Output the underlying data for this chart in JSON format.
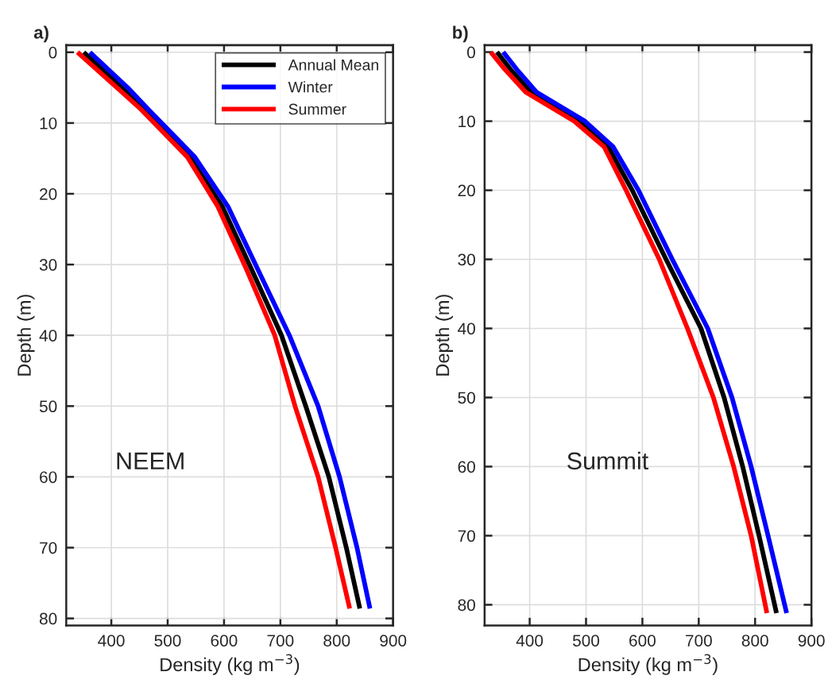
{
  "chart_data": [
    {
      "type": "line",
      "title": "a)",
      "xlabel": "Density (kg m$^{−3}$)",
      "ylabel": "Depth (m)",
      "xlim": [
        320,
        900
      ],
      "xticks": [
        400,
        500,
        600,
        700,
        800,
        900
      ],
      "ylim": [
        81,
        -1
      ],
      "yticks": [
        0,
        10,
        20,
        30,
        40,
        50,
        60,
        70,
        80
      ],
      "grid": true,
      "legend": "top right",
      "annotations": [
        "NEEM"
      ],
      "series": [
        {
          "name": "Annual Mean",
          "color": "#000000",
          "x": [
            351,
            419,
            458,
            539,
            597,
            649,
            702,
            745,
            786,
            817,
            841
          ],
          "values": [
            0,
            5,
            8.1,
            14.8,
            21.8,
            30.7,
            40,
            50,
            60,
            70,
            78.6
          ]
        },
        {
          "name": "Winter",
          "color": "#0000ff",
          "x": [
            362,
            429,
            466,
            548,
            607,
            660,
            716,
            767,
            805,
            836,
            859
          ],
          "values": [
            0,
            5,
            8.1,
            14.8,
            21.8,
            30.7,
            40,
            50,
            60,
            70,
            78.6
          ]
        },
        {
          "name": "Summer",
          "color": "#ff0000",
          "x": [
            340,
            410,
            453,
            535,
            589,
            640,
            690,
            726,
            767,
            798,
            823
          ],
          "values": [
            0,
            5,
            8.1,
            14.8,
            21.8,
            30.7,
            40,
            50,
            60,
            70,
            78.6
          ]
        }
      ]
    },
    {
      "type": "line",
      "title": "b)",
      "xlabel": "Density (kg m$^{−3}$)",
      "ylabel": "Depth (m)",
      "xlim": [
        320,
        900
      ],
      "xticks": [
        400,
        500,
        600,
        700,
        800,
        900
      ],
      "ylim": [
        83,
        -1
      ],
      "yticks": [
        0,
        10,
        20,
        30,
        40,
        50,
        60,
        70,
        80
      ],
      "grid": true,
      "annotations": [
        "Summit"
      ],
      "series": [
        {
          "color": "#000000",
          "x": [
            342,
            366,
            402,
            489,
            539,
            582,
            642,
            704,
            745,
            778,
            807,
            838
          ],
          "values": [
            0,
            2.5,
            5.8,
            10,
            13.7,
            20,
            30,
            40,
            50,
            60,
            70,
            81.2
          ]
        },
        {
          "color": "#0000ff",
          "x": [
            353,
            377,
            412,
            498,
            548,
            593,
            653,
            716,
            759,
            793,
            823,
            856
          ],
          "values": [
            0,
            2.5,
            5.8,
            10,
            13.7,
            20,
            30,
            40,
            50,
            60,
            70,
            81.2
          ]
        },
        {
          "color": "#ff0000",
          "x": [
            331,
            356,
            393,
            479,
            532,
            571,
            630,
            680,
            726,
            762,
            793,
            821
          ],
          "values": [
            0,
            2.5,
            5.8,
            10,
            13.7,
            20,
            30,
            40,
            50,
            60,
            70,
            81.2
          ]
        }
      ]
    }
  ]
}
